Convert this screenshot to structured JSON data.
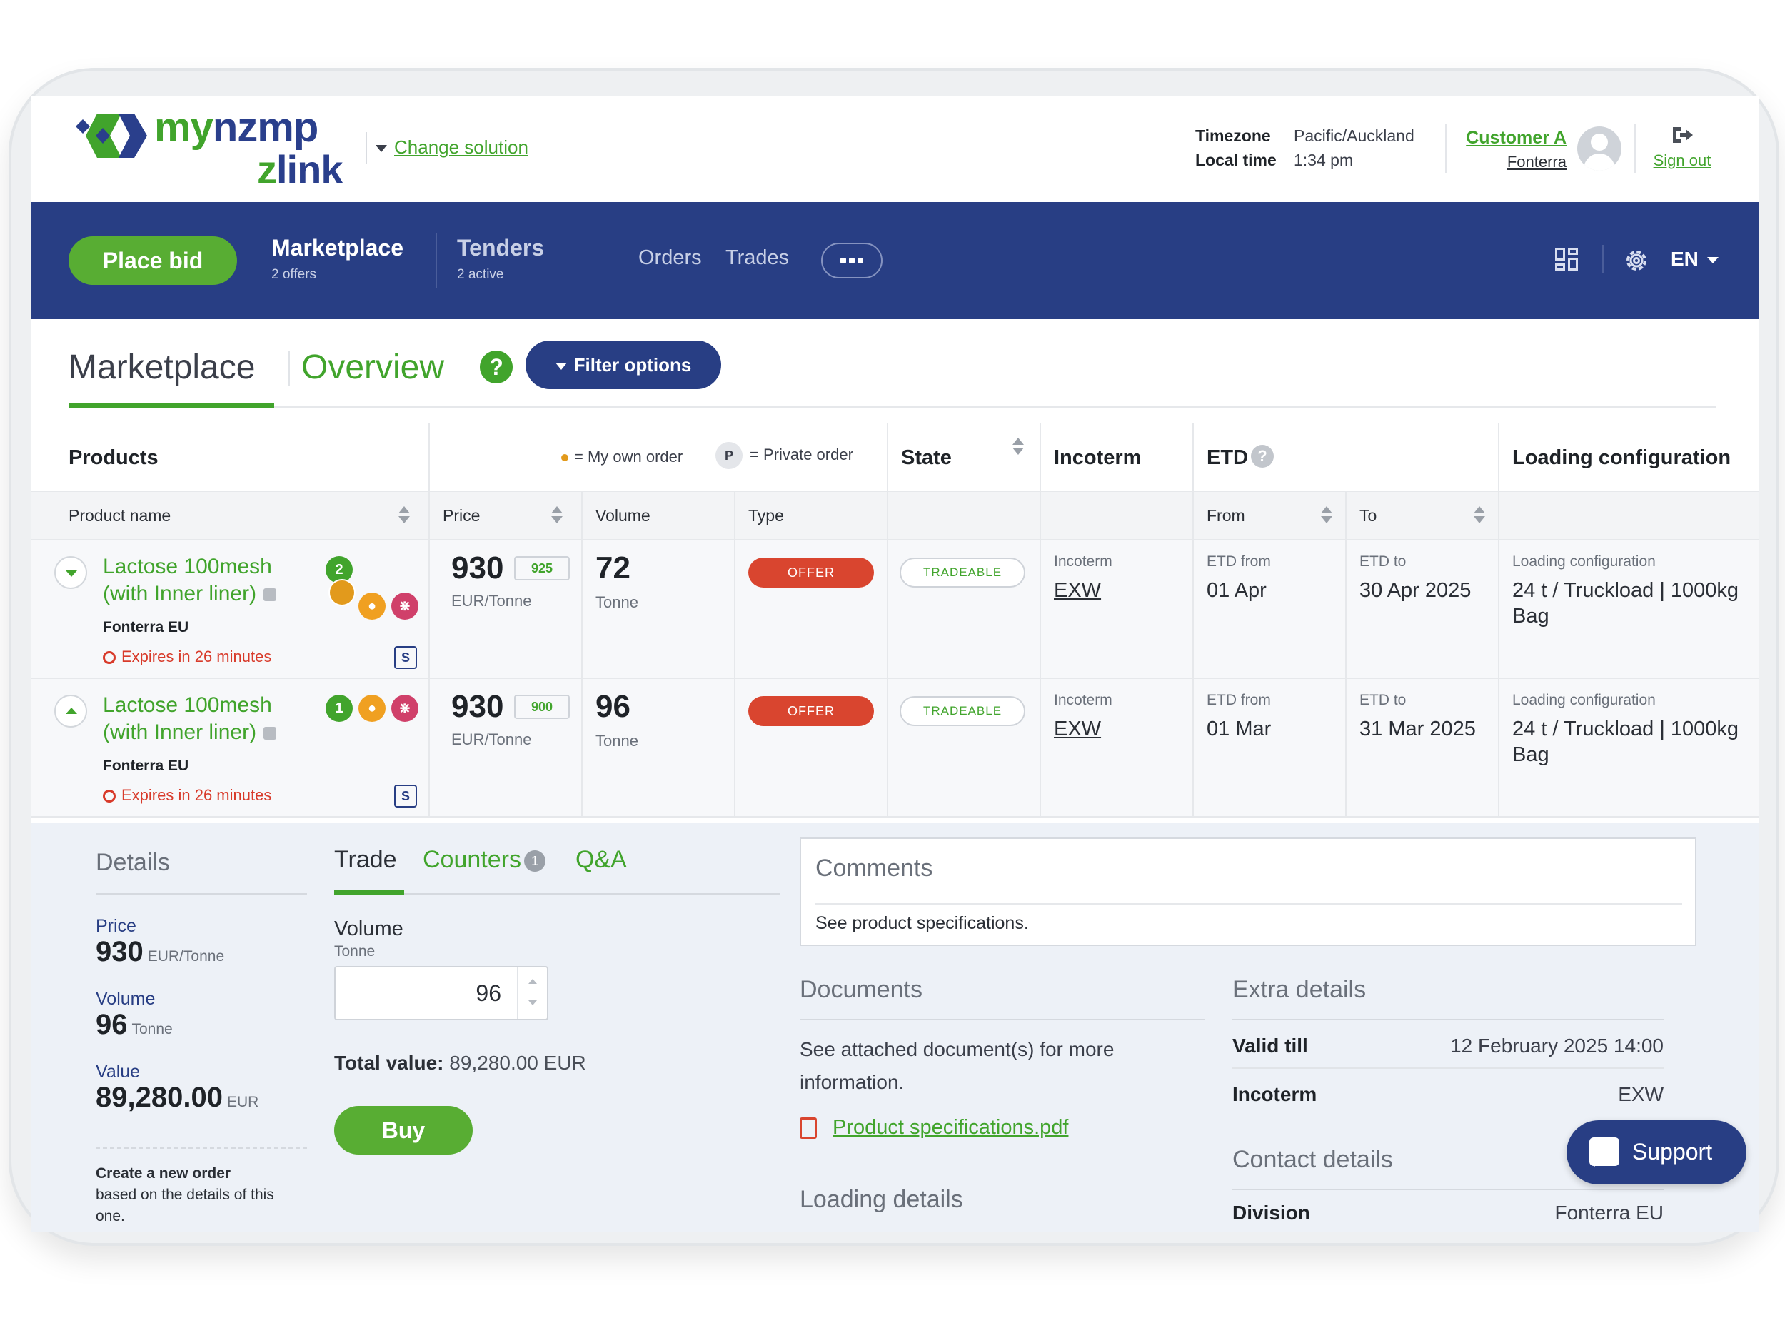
{
  "header": {
    "logo_line1_my": "my",
    "logo_line1_rest": "nzmp",
    "logo_line2_z": "z",
    "logo_line2_rest": "link",
    "change_solution": "Change solution",
    "timezone_label": "Timezone",
    "timezone_value": "Pacific/Auckland",
    "localtime_label": "Local time",
    "localtime_value": "1:34 pm",
    "customer_name": "Customer A",
    "customer_org": "Fonterra",
    "sign_out": "Sign out"
  },
  "nav": {
    "place_bid": "Place bid",
    "tabs": [
      {
        "label": "Marketplace",
        "sub": "2 offers"
      },
      {
        "label": "Tenders",
        "sub": "2 active"
      }
    ],
    "links": [
      "Orders",
      "Trades"
    ],
    "language": "EN"
  },
  "page": {
    "title": "Marketplace",
    "subtitle": "Overview",
    "help": "?",
    "filter_options": "Filter options"
  },
  "table": {
    "group_headers": {
      "products": "Products",
      "legend_own": "= My own order",
      "legend_private_badge": "P",
      "legend_private": "= Private order",
      "state": "State",
      "incoterm": "Incoterm",
      "etd": "ETD",
      "loading_configuration": "Loading configuration"
    },
    "column_headers": {
      "product_name": "Product name",
      "price": "Price",
      "volume": "Volume",
      "type": "Type",
      "from": "From",
      "to": "To"
    },
    "rows": [
      {
        "product": "Lactose 100mesh (with Inner liner)",
        "seller": "Fonterra EU",
        "expires": "Expires in 26 minutes",
        "count_badge": "2",
        "s_label": "S",
        "price": "930",
        "price_secondary": "925",
        "price_unit": "EUR/Tonne",
        "volume": "72",
        "volume_unit": "Tonne",
        "type": "OFFER",
        "state": "TRADEABLE",
        "incoterm_label": "Incoterm",
        "incoterm": "EXW",
        "etd_from_label": "ETD from",
        "etd_from": "01 Apr",
        "etd_to_label": "ETD to",
        "etd_to": "30 Apr 2025",
        "loading_label": "Loading configuration",
        "loading": "24 t / Truckload | 1000kg Bag"
      },
      {
        "product": "Lactose 100mesh (with Inner liner)",
        "seller": "Fonterra EU",
        "expires": "Expires in 26 minutes",
        "count_badge": "1",
        "s_label": "S",
        "price": "930",
        "price_secondary": "900",
        "price_unit": "EUR/Tonne",
        "volume": "96",
        "volume_unit": "Tonne",
        "type": "OFFER",
        "state": "TRADEABLE",
        "incoterm_label": "Incoterm",
        "incoterm": "EXW",
        "etd_from_label": "ETD from",
        "etd_from": "01 Mar",
        "etd_to_label": "ETD to",
        "etd_to": "31 Mar 2025",
        "loading_label": "Loading configuration",
        "loading": "24 t / Truckload | 1000kg Bag"
      }
    ]
  },
  "details": {
    "heading": "Details",
    "price_label": "Price",
    "price_value": "930",
    "price_unit": "EUR/Tonne",
    "volume_label": "Volume",
    "volume_value": "96",
    "volume_unit": "Tonne",
    "value_label": "Value",
    "value_value": "89,280.00",
    "value_unit": "EUR",
    "new_order_title": "Create a new order",
    "new_order_text": "based on the details of this one."
  },
  "trade": {
    "tabs": {
      "trade": "Trade",
      "counters": "Counters",
      "counters_count": "1",
      "qa": "Q&A"
    },
    "volume_label": "Volume",
    "volume_unit": "Tonne",
    "volume_input": "96",
    "total_label": "Total value:",
    "total_value": "89,280.00 EUR",
    "buy": "Buy"
  },
  "comments": {
    "heading": "Comments",
    "text": "See product specifications."
  },
  "documents": {
    "heading": "Documents",
    "text": "See attached document(s) for more information.",
    "file": "Product specifications.pdf",
    "loading_heading": "Loading details"
  },
  "extra": {
    "heading": "Extra details",
    "valid_till_label": "Valid till",
    "valid_till_value": "12 February 2025 14:00",
    "incoterm_label": "Incoterm",
    "incoterm_value": "EXW",
    "contact_heading": "Contact details",
    "division_label": "Division",
    "division_value": "Fonterra EU"
  },
  "support": "Support",
  "colors": {
    "brand_navy": "#283e84",
    "brand_green": "#41a42c",
    "offer_red": "#d9452f"
  },
  "icons": [
    "logo-mark-icon",
    "caret-down-icon",
    "avatar-icon",
    "sign-out-icon",
    "more-icon",
    "grid-icon",
    "gear-icon",
    "help-icon",
    "sort-icon",
    "chevron-icon",
    "external-link-icon",
    "clock-icon",
    "chat-icon",
    "paperclip-icon",
    "pdf-icon",
    "support-chat-icon"
  ]
}
